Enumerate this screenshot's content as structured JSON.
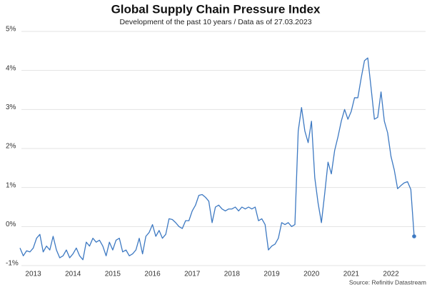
{
  "chart_data": {
    "type": "line",
    "title": "Global Supply Chain Pressure Index",
    "subtitle": "Development of the past 10 years / Data as of 27.03.2023",
    "source": "Source: Refinitiv Datastream",
    "categories": [
      null,
      null,
      null,
      null,
      "2013",
      null,
      null,
      null,
      null,
      null,
      null,
      null,
      null,
      null,
      null,
      null,
      "2014",
      null,
      null,
      null,
      null,
      null,
      null,
      null,
      null,
      null,
      null,
      null,
      "2015",
      null,
      null,
      null,
      null,
      null,
      null,
      null,
      null,
      null,
      null,
      null,
      "2016",
      null,
      null,
      null,
      null,
      null,
      null,
      null,
      null,
      null,
      null,
      null,
      "2017",
      null,
      null,
      null,
      null,
      null,
      null,
      null,
      null,
      null,
      null,
      null,
      "2018",
      null,
      null,
      null,
      null,
      null,
      null,
      null,
      null,
      null,
      null,
      null,
      "2019",
      null,
      null,
      null,
      null,
      null,
      null,
      null,
      null,
      null,
      null,
      null,
      "2020",
      null,
      null,
      null,
      null,
      null,
      null,
      null,
      null,
      null,
      null,
      null,
      "2021",
      null,
      null,
      null,
      null,
      null,
      null,
      null,
      null,
      null,
      null,
      null,
      "2022",
      null,
      null,
      null,
      null,
      null,
      null,
      null
    ],
    "values": [
      -0.55,
      -0.75,
      -0.62,
      -0.65,
      -0.55,
      -0.3,
      -0.2,
      -0.65,
      -0.5,
      -0.6,
      -0.25,
      -0.6,
      -0.8,
      -0.75,
      -0.6,
      -0.8,
      -0.7,
      -0.55,
      -0.75,
      -0.85,
      -0.4,
      -0.5,
      -0.3,
      -0.4,
      -0.35,
      -0.5,
      -0.75,
      -0.4,
      -0.6,
      -0.35,
      -0.3,
      -0.65,
      -0.6,
      -0.75,
      -0.7,
      -0.6,
      -0.3,
      -0.7,
      -0.25,
      -0.15,
      0.05,
      -0.25,
      -0.1,
      -0.3,
      -0.2,
      0.2,
      0.18,
      0.1,
      0.0,
      -0.05,
      0.15,
      0.15,
      0.4,
      0.55,
      0.8,
      0.82,
      0.75,
      0.65,
      0.1,
      0.5,
      0.55,
      0.45,
      0.4,
      0.45,
      0.45,
      0.5,
      0.4,
      0.5,
      0.45,
      0.5,
      0.45,
      0.5,
      0.15,
      0.2,
      0.05,
      -0.6,
      -0.5,
      -0.45,
      -0.3,
      0.1,
      0.05,
      0.1,
      0.0,
      0.05,
      2.45,
      3.05,
      2.45,
      2.15,
      2.7,
      1.25,
      0.6,
      0.1,
      0.85,
      1.65,
      1.35,
      1.95,
      2.3,
      2.7,
      3.0,
      2.75,
      2.95,
      3.3,
      3.3,
      3.8,
      4.25,
      4.32,
      3.55,
      2.75,
      2.8,
      3.45,
      2.7,
      2.4,
      1.8,
      1.45,
      0.97,
      1.05,
      1.12,
      1.15,
      0.95,
      -0.25
    ],
    "color": "#3d79c2",
    "ylim": [
      -1,
      5
    ],
    "yticks": [
      {
        "value": -1,
        "label": "-1%"
      },
      {
        "value": 0,
        "label": "0%"
      },
      {
        "value": 1,
        "label": "1%"
      },
      {
        "value": 2,
        "label": "2%"
      },
      {
        "value": 3,
        "label": "3%"
      },
      {
        "value": 4,
        "label": "4%"
      },
      {
        "value": 5,
        "label": "5%"
      }
    ],
    "grid": true
  }
}
